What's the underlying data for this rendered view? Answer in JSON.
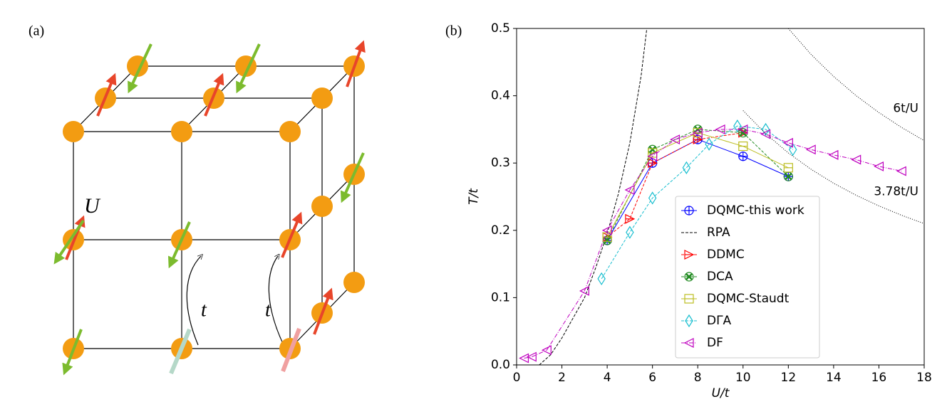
{
  "diagram": {
    "label": "(a)",
    "site_label": "U",
    "hop_labels": [
      "t",
      "t"
    ]
  },
  "chart_data": {
    "type": "line",
    "panel_label": "(b)",
    "xlabel": "U/t",
    "ylabel": "T/t",
    "xlim": [
      0,
      18
    ],
    "xticks": [
      0,
      2,
      4,
      6,
      8,
      10,
      12,
      14,
      16,
      18
    ],
    "ylim": [
      0,
      0.5
    ],
    "yticks": [
      {
        "value": 0,
        "label": "0.0"
      },
      0.1,
      0.2,
      0.3,
      0.4,
      0.5
    ],
    "legend_loc": "lower center",
    "series": [
      {
        "name": "DQMC-this work",
        "color": "#0000ff",
        "marker": "circle-plus",
        "linestyle": "solid",
        "in_legend": true,
        "x": [
          4,
          6,
          8,
          10,
          12
        ],
        "values": [
          0.185,
          0.3,
          0.335,
          0.31,
          0.28
        ]
      },
      {
        "name": "RPA",
        "color": "#000000",
        "marker": "none",
        "linestyle": "dashed",
        "in_legend": true,
        "x": [
          1,
          1.5,
          2,
          2.5,
          3,
          3.5,
          4,
          4.5,
          5,
          5.5,
          5.75
        ],
        "values": [
          0,
          0.015,
          0.04,
          0.07,
          0.1,
          0.145,
          0.195,
          0.255,
          0.33,
          0.43,
          0.5
        ]
      },
      {
        "name": "DDMC",
        "color": "#ff0000",
        "marker": "triangle-right",
        "linestyle": "dashed",
        "in_legend": true,
        "x": [
          4,
          5,
          6,
          8,
          10
        ],
        "values": [
          0.19,
          0.217,
          0.3,
          0.335,
          0.345
        ]
      },
      {
        "name": "DCA",
        "color": "#228b22",
        "marker": "x-circle",
        "linestyle": "dashed",
        "in_legend": true,
        "x": [
          4,
          6,
          8,
          10,
          12
        ],
        "values": [
          0.185,
          0.32,
          0.35,
          0.345,
          0.28
        ]
      },
      {
        "name": "DQMC-Staudt",
        "color": "#bcbd22",
        "marker": "square-line",
        "linestyle": "solid",
        "in_legend": true,
        "x": [
          4,
          6,
          8,
          10,
          12
        ],
        "values": [
          0.19,
          0.315,
          0.345,
          0.325,
          0.293
        ]
      },
      {
        "name": "DΓA",
        "color": "#17becf",
        "marker": "diamond",
        "linestyle": "dashed",
        "in_legend": true,
        "x": [
          3.75,
          5,
          6,
          7.5,
          8.5,
          9.75,
          11,
          12.2
        ],
        "values": [
          0.128,
          0.197,
          0.248,
          0.293,
          0.328,
          0.355,
          0.35,
          0.32
        ]
      },
      {
        "name": "DF",
        "color": "#bf00bf",
        "marker": "triangle-left",
        "linestyle": "dashdot",
        "in_legend": true,
        "x": [
          0.33,
          0.67,
          1.33,
          3,
          4,
          5,
          6,
          7,
          8,
          9,
          10,
          11,
          12,
          13,
          14,
          15,
          16,
          17
        ],
        "values": [
          0.01,
          0.012,
          0.022,
          0.11,
          0.2,
          0.26,
          0.31,
          0.335,
          0.345,
          0.35,
          0.35,
          0.343,
          0.33,
          0.32,
          0.312,
          0.305,
          0.295,
          0.288
        ]
      },
      {
        "name": "6t/U",
        "color": "#000000",
        "marker": "none",
        "linestyle": "dotted",
        "in_legend": false,
        "x": [
          12,
          13,
          14,
          15,
          16,
          17,
          18
        ],
        "values": [
          0.5,
          0.4615,
          0.4286,
          0.4,
          0.375,
          0.3529,
          0.3333
        ]
      },
      {
        "name": "3.78t/U",
        "color": "#000000",
        "marker": "none",
        "linestyle": "dotted",
        "in_legend": false,
        "x": [
          10,
          11,
          12,
          13,
          14,
          15,
          16,
          17,
          18
        ],
        "values": [
          0.378,
          0.3436,
          0.315,
          0.2908,
          0.27,
          0.252,
          0.2363,
          0.2224,
          0.21
        ]
      }
    ]
  }
}
